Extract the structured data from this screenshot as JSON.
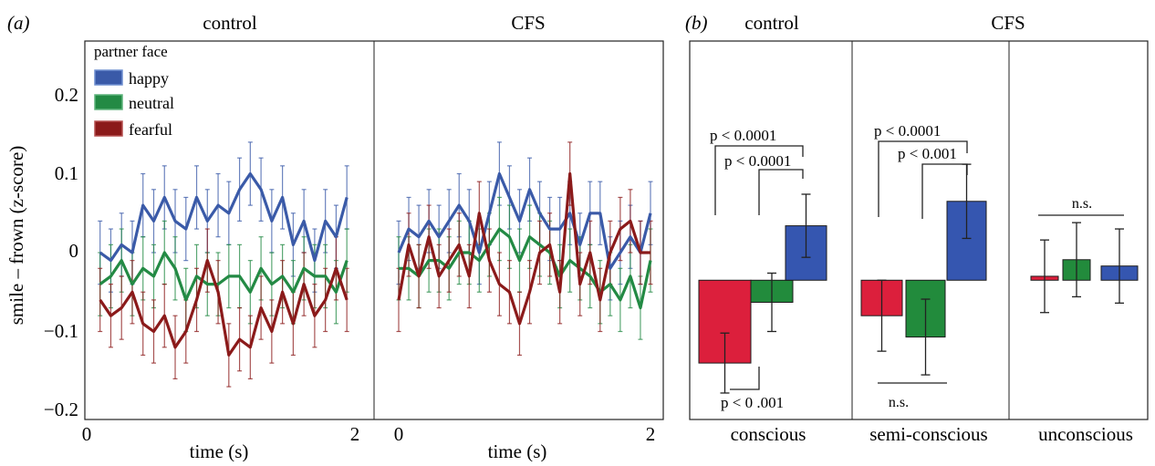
{
  "panel_a": {
    "label": "(a)",
    "col_titles": [
      "control",
      "CFS"
    ],
    "ylabel": "smile – frown (z-score)",
    "xlabel": "time (s)",
    "yticks": [
      "0.2",
      "0.1",
      "0",
      "−0.1",
      "−0.2"
    ],
    "xticks": [
      "0",
      "2",
      "0",
      "2"
    ],
    "legend_title": "partner face"
  },
  "panel_b": {
    "label": "(b)",
    "col_titles": [
      "control",
      "CFS"
    ],
    "groups": [
      "conscious",
      "semi-conscious",
      "unconscious"
    ],
    "annotations": [
      "p < 0.0001",
      "p < 0.0001",
      "p < 0 .001",
      "p < 0.0001",
      "p < 0.001",
      "n.s.",
      "n.s."
    ]
  },
  "colors": {
    "happy": "#3a5aa8",
    "neutral": "#238a44",
    "fearful": "#8b1a1a",
    "bar_red": "#dc1f3c",
    "bar_green": "#228b3c",
    "bar_blue": "#3556b0"
  },
  "chart_data": [
    {
      "type": "line",
      "title": "control",
      "xlabel": "time (s)",
      "ylabel": "smile – frown (z-score)",
      "xlim": [
        0,
        2
      ],
      "ylim": [
        -0.2,
        0.25
      ],
      "x": [
        0.1,
        0.18,
        0.26,
        0.34,
        0.42,
        0.5,
        0.58,
        0.66,
        0.74,
        0.82,
        0.9,
        0.98,
        1.06,
        1.14,
        1.22,
        1.3,
        1.38,
        1.46,
        1.54,
        1.62,
        1.7,
        1.78,
        1.86,
        1.94
      ],
      "series": [
        {
          "name": "happy",
          "values": [
            0.0,
            -0.01,
            0.01,
            0.0,
            0.06,
            0.04,
            0.07,
            0.04,
            0.03,
            0.07,
            0.04,
            0.06,
            0.05,
            0.08,
            0.1,
            0.08,
            0.04,
            0.07,
            0.01,
            0.04,
            -0.01,
            0.04,
            0.02,
            0.07
          ],
          "err": 0.04
        },
        {
          "name": "neutral",
          "values": [
            -0.04,
            -0.03,
            -0.01,
            -0.04,
            -0.02,
            -0.03,
            0.0,
            -0.02,
            -0.06,
            -0.03,
            -0.04,
            -0.04,
            -0.03,
            -0.03,
            -0.05,
            -0.02,
            -0.04,
            -0.03,
            -0.05,
            -0.02,
            -0.03,
            -0.03,
            -0.05,
            -0.01
          ],
          "err": 0.04
        },
        {
          "name": "fearful",
          "values": [
            -0.06,
            -0.08,
            -0.07,
            -0.05,
            -0.09,
            -0.1,
            -0.08,
            -0.12,
            -0.1,
            -0.06,
            -0.01,
            -0.05,
            -0.13,
            -0.11,
            -0.12,
            -0.07,
            -0.1,
            -0.05,
            -0.09,
            -0.04,
            -0.08,
            -0.06,
            -0.02,
            -0.06
          ],
          "err": 0.04
        }
      ]
    },
    {
      "type": "line",
      "title": "CFS",
      "xlabel": "time (s)",
      "ylabel": "smile – frown (z-score)",
      "xlim": [
        0,
        2
      ],
      "ylim": [
        -0.2,
        0.25
      ],
      "x": [
        0.0,
        0.08,
        0.16,
        0.24,
        0.32,
        0.4,
        0.48,
        0.56,
        0.64,
        0.72,
        0.8,
        0.88,
        0.96,
        1.04,
        1.12,
        1.2,
        1.28,
        1.36,
        1.44,
        1.52,
        1.6,
        1.68,
        1.76,
        1.84,
        1.92,
        2.0
      ],
      "series": [
        {
          "name": "happy",
          "values": [
            0.0,
            0.03,
            0.02,
            0.04,
            0.02,
            0.04,
            0.06,
            0.04,
            0.0,
            0.05,
            0.1,
            0.07,
            0.04,
            0.08,
            0.05,
            0.03,
            0.03,
            0.05,
            0.01,
            0.05,
            0.05,
            -0.02,
            0.0,
            0.02,
            0.0,
            0.05
          ],
          "err": 0.04
        },
        {
          "name": "neutral",
          "values": [
            -0.02,
            -0.02,
            -0.03,
            -0.01,
            -0.01,
            -0.02,
            0.0,
            0.0,
            -0.01,
            0.01,
            0.03,
            0.02,
            -0.01,
            0.02,
            0.01,
            0.0,
            -0.03,
            -0.01,
            -0.02,
            -0.03,
            -0.05,
            -0.04,
            -0.06,
            -0.03,
            -0.07,
            -0.01
          ],
          "err": 0.04
        },
        {
          "name": "fearful",
          "values": [
            -0.06,
            0.01,
            -0.03,
            0.02,
            -0.03,
            -0.01,
            0.01,
            -0.03,
            0.05,
            -0.01,
            -0.04,
            -0.05,
            -0.09,
            -0.05,
            0.0,
            0.01,
            -0.05,
            0.1,
            -0.04,
            0.0,
            -0.06,
            0.0,
            0.03,
            0.04,
            0.0,
            0.0
          ],
          "err": 0.04
        }
      ]
    },
    {
      "type": "bar",
      "categories": [
        "conscious",
        "semi-conscious",
        "unconscious"
      ],
      "baseline": -0.035,
      "ylim": [
        -0.2,
        0.25
      ],
      "series": [
        {
          "name": "fearful",
          "values": [
            -0.14,
            -0.08,
            -0.03
          ],
          "err": [
            0.038,
            0.045,
            0.046
          ]
        },
        {
          "name": "neutral",
          "values": [
            -0.063,
            -0.107,
            -0.009
          ],
          "err": [
            0.037,
            0.048,
            0.047
          ]
        },
        {
          "name": "happy",
          "values": [
            0.034,
            0.065,
            -0.017
          ],
          "err": [
            0.04,
            0.047,
            0.047
          ]
        }
      ]
    }
  ]
}
